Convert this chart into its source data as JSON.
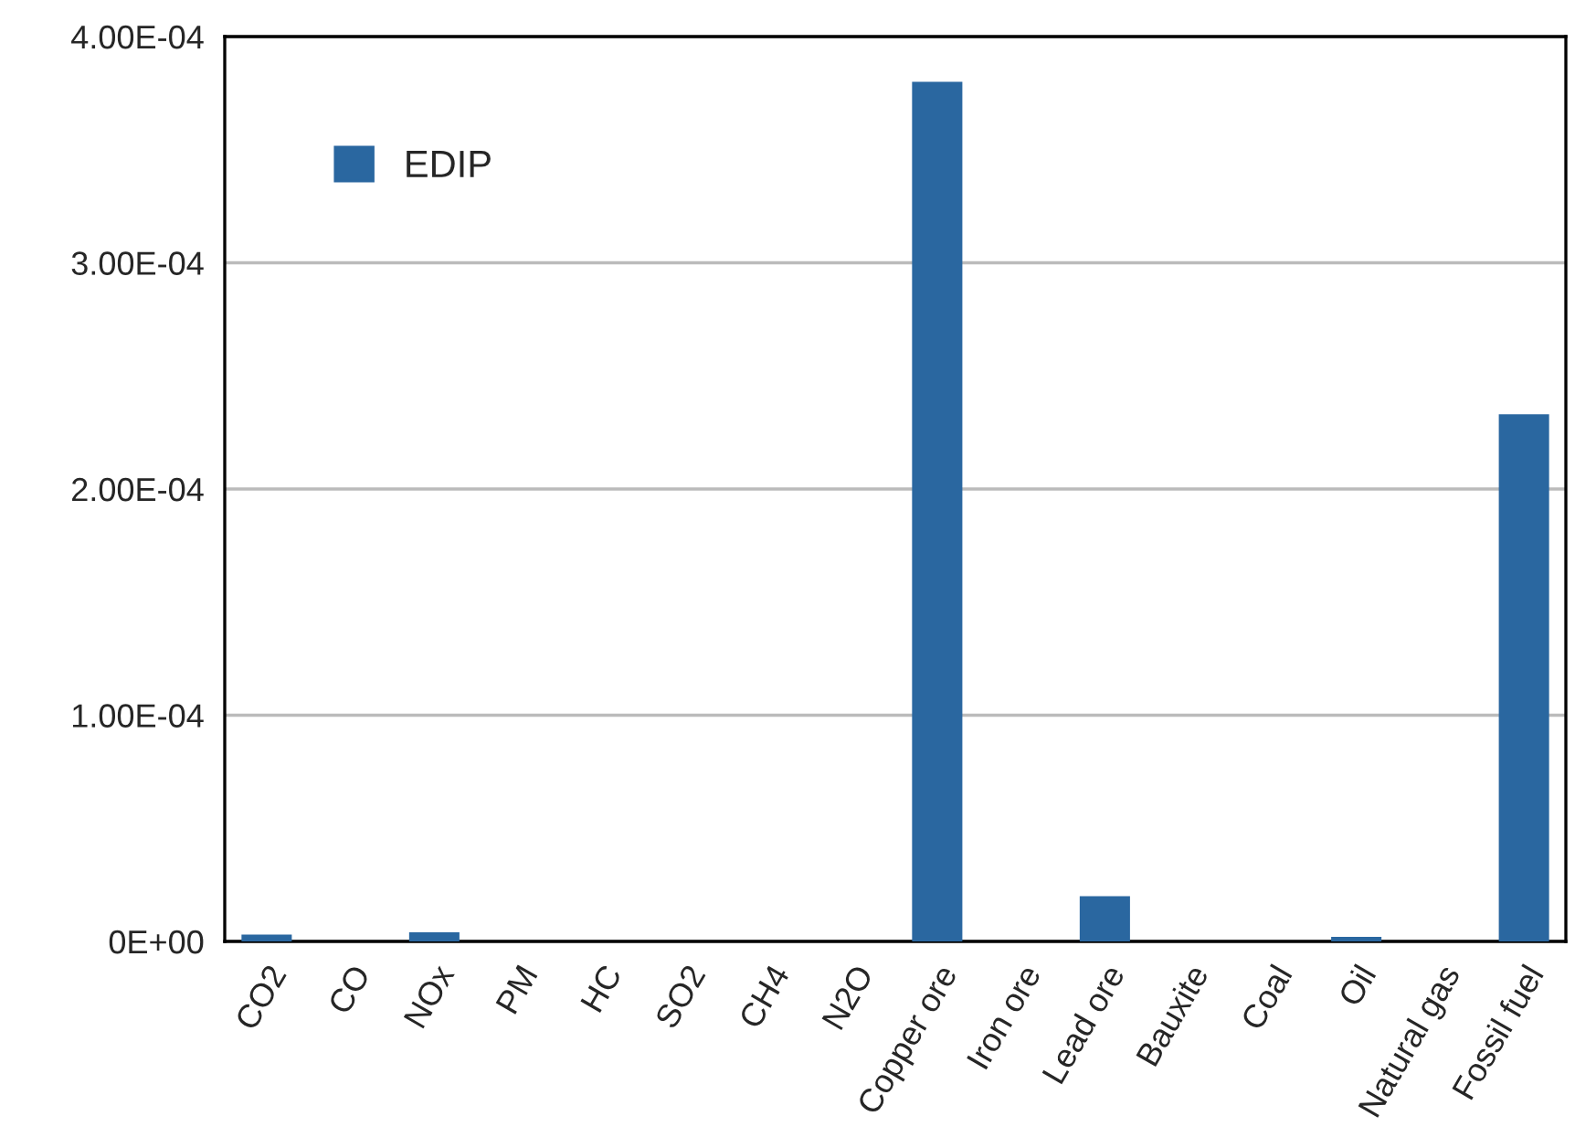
{
  "chart_data": {
    "type": "bar",
    "categories": [
      "CO2",
      "CO",
      "NOx",
      "PM",
      "HC",
      "SO2",
      "CH4",
      "N2O",
      "Copper ore",
      "Iron ore",
      "Lead ore",
      "Bauxite",
      "Coal",
      "Oil",
      "Natural gas",
      "Fossil fuel"
    ],
    "series": [
      {
        "name": "EDIP",
        "color": "#2a67a0",
        "values": [
          3e-06,
          0,
          4e-06,
          0,
          0,
          0,
          0,
          0,
          0.00038,
          0,
          2e-05,
          0,
          0,
          2e-06,
          0,
          0.000233
        ]
      }
    ],
    "ylim": [
      0,
      0.0004
    ],
    "yticks": [
      {
        "value": 0,
        "label": "0E+00"
      },
      {
        "value": 0.0001,
        "label": "1.00E-04"
      },
      {
        "value": 0.0002,
        "label": "2.00E-04"
      },
      {
        "value": 0.0003,
        "label": "3.00E-04"
      },
      {
        "value": 0.0004,
        "label": "4.00E-04"
      }
    ],
    "grid": "y",
    "legend": "top left"
  }
}
